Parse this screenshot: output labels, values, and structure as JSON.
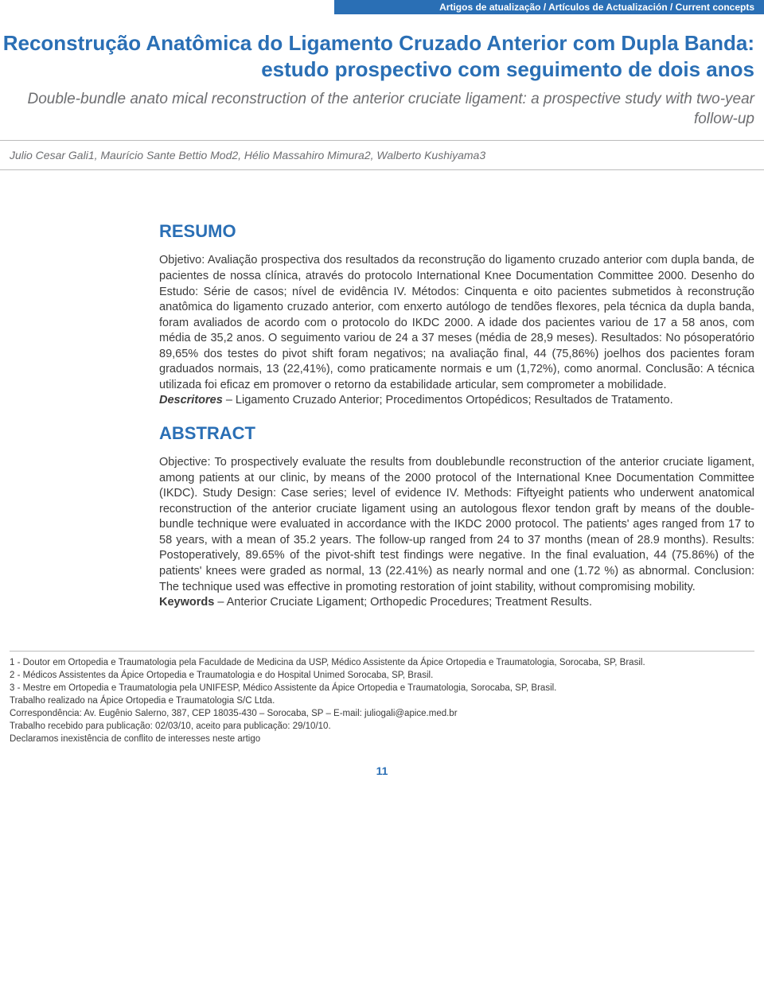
{
  "theme": {
    "primary_color": "#2a6fb5",
    "muted_color": "#6d6e71",
    "rule_color": "#bbbbbb",
    "body_color": "#3a3a3a",
    "background": "#ffffff"
  },
  "header": {
    "category": "Artigos de atualização / Artículos de Actualización / Current concepts",
    "title_pt": "Reconstrução Anatômica do Ligamento Cruzado Anterior com Dupla Banda: estudo prospectivo com seguimento de dois anos",
    "title_en": "Double-bundle anato mical reconstruction of the anterior cruciate ligament: a prospective study with two-year follow-up",
    "authors": "Julio Cesar Gali1, Maurício Sante Bettio Mod2, Hélio Massahiro Mimura2, Walberto Kushiyama3"
  },
  "sections": {
    "resumo": {
      "heading": "RESUMO",
      "body": "Objetivo: Avaliação prospectiva dos resultados da reconstrução do ligamento cruzado anterior com dupla banda, de pacientes de nossa clínica, através do protocolo International Knee Documentation Committee 2000. Desenho do Estudo: Série de casos; nível de evidência IV. Métodos: Cinquenta e oito pacientes submetidos à reconstrução anatômica do ligamento cruzado anterior, com enxerto autólogo de tendões flexores, pela técnica da dupla banda, foram avaliados de acordo com o protocolo do IKDC 2000. A idade dos pacientes variou de 17 a 58 anos, com média de 35,2 anos. O seguimento variou de 24 a 37 meses (média de 28,9 meses). Resultados: No pósoperatório 89,65% dos testes do pivot shift foram negativos; na avaliação final, 44 (75,86%) joelhos dos pacientes foram graduados normais, 13 (22,41%), como praticamente normais e um (1,72%), como anormal. Conclusão: A técnica utilizada foi eficaz em promover o retorno da estabilidade articular, sem comprometer a mobilidade.",
      "descriptors_label": "Descritores",
      "descriptors": " – Ligamento Cruzado Anterior; Procedimentos Ortopédicos; Resultados de Tratamento."
    },
    "abstract": {
      "heading": "ABSTRACT",
      "body": "Objective: To prospectively evaluate the results from doublebundle reconstruction of the anterior cruciate ligament, among patients at our clinic, by means of the 2000 protocol of the International Knee Documentation Committee (IKDC). Study Design: Case series; level of evidence IV. Methods: Fiftyeight patients who underwent anatomical reconstruction of the anterior cruciate ligament using an autologous flexor tendon graft by means of the double-bundle technique were evaluated in accordance with the IKDC 2000 protocol. The patients' ages ranged from 17 to 58 years, with a mean of 35.2 years. The follow-up ranged from 24 to 37 months (mean of 28.9 months). Results: Postoperatively, 89.65% of the pivot-shift test findings were negative. In the final evaluation, 44 (75.86%) of the patients' knees were graded as normal, 13 (22.41%) as nearly normal and one (1.72 %) as abnormal. Conclusion: The technique used was effective in promoting restoration of joint stability, without compromising mobility.",
      "keywords_label": "Keywords",
      "keywords": " – Anterior Cruciate Ligament; Orthopedic Procedures; Treatment Results."
    }
  },
  "footnotes": {
    "n1": "1 - Doutor em Ortopedia e Traumatologia pela Faculdade de Medicina da USP, Médico Assistente da Ápice Ortopedia e Traumatologia, Sorocaba, SP, Brasil.",
    "n2": "2 - Médicos Assistentes da Ápice Ortopedia e Traumatologia e do Hospital Unimed Sorocaba, SP, Brasil.",
    "n3": "3 - Mestre em Ortopedia e Traumatologia pela UNIFESP, Médico Assistente da Ápice Ortopedia e Traumatologia, Sorocaba, SP, Brasil.",
    "inst": "Trabalho realizado na Ápice Ortopedia e Traumatologia S/C Ltda.",
    "corr": "Correspondência: Av. Eugênio Salerno, 387, CEP 18035-430 – Sorocaba, SP – E-mail: juliogali@apice.med.br",
    "dates": "Trabalho recebido para publicação: 02/03/10, aceito para publicação: 29/10/10.",
    "coi": "Declaramos inexistência de conflito de interesses neste artigo"
  },
  "page_number": "11"
}
